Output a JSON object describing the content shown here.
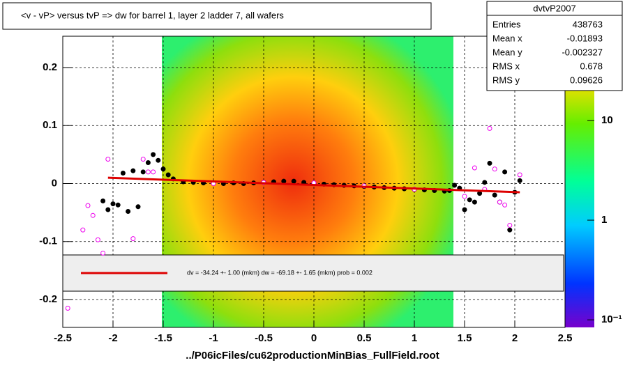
{
  "chart_data": {
    "type": "profile",
    "title": "<v - vP>       versus  tvP =>  dw for barrel 1, layer 2 ladder 7, all wafers",
    "xlabel": "../P06icFiles/cu62productionMinBias_FullField.root",
    "xlim": [
      -2.5,
      2.5
    ],
    "ylim": [
      -0.248,
      0.254
    ],
    "xticks": [
      -2.5,
      -2,
      -1.5,
      -1,
      -0.5,
      0,
      0.5,
      1,
      1.5,
      2,
      2.5
    ],
    "yticks": [
      -0.2,
      -0.1,
      0,
      0.1,
      0.2
    ],
    "grid": true,
    "zlim": [
      0.084,
      70
    ],
    "zscale": "log",
    "zticks": [
      {
        "value": 10,
        "label": "10"
      },
      {
        "value": 1,
        "label": "1"
      },
      {
        "value": 0.1,
        "label": "10⁻¹"
      }
    ],
    "stats": {
      "title": "dvtvP2007",
      "rows": [
        [
          "Entries",
          "438763"
        ],
        [
          "Mean x",
          "-0.01893"
        ],
        [
          "Mean y",
          "-0.002327"
        ],
        [
          "RMS x",
          "0.678"
        ],
        [
          "RMS y",
          "0.09626"
        ]
      ]
    },
    "fit_label": "dv =  -34.24 +-  1.00 (mkm) dw =  -69.18 +-  1.65 (mkm) prob = 0.002",
    "series": [
      {
        "color": "#000000",
        "marker": "filled",
        "x": [
          -2.1,
          -2.05,
          -2.0,
          -1.95,
          -1.9,
          -1.85,
          -1.8,
          -1.75,
          -1.7,
          -1.65,
          -1.6,
          -1.55,
          -1.5,
          -1.45,
          -1.4,
          -1.3,
          -1.2,
          -1.1,
          -1.0,
          -0.9,
          -0.8,
          -0.7,
          -0.6,
          -0.5,
          -0.4,
          -0.3,
          -0.2,
          -0.1,
          0,
          0.1,
          0.2,
          0.3,
          0.4,
          0.5,
          0.6,
          0.7,
          0.8,
          0.9,
          1.0,
          1.1,
          1.2,
          1.3,
          1.35,
          1.4,
          1.45,
          1.5,
          1.55,
          1.6,
          1.65,
          1.7,
          1.75,
          1.8,
          1.85,
          1.9,
          1.95,
          2.0,
          2.05
        ],
        "values": [
          -0.03,
          -0.045,
          -0.035,
          -0.037,
          0.018,
          -0.048,
          0.022,
          -0.04,
          0.02,
          0.036,
          0.05,
          0.04,
          0.025,
          0.015,
          0.008,
          0.003,
          0.002,
          0.001,
          0.001,
          0.0,
          0.001,
          0.0,
          0.001,
          0.002,
          0.003,
          0.004,
          0.004,
          0.002,
          0.0,
          -0.001,
          -0.002,
          -0.003,
          -0.004,
          -0.005,
          -0.006,
          -0.007,
          -0.008,
          -0.009,
          -0.01,
          -0.011,
          -0.012,
          -0.013,
          -0.012,
          -0.003,
          -0.008,
          -0.045,
          -0.028,
          -0.032,
          -0.017,
          0.002,
          0.035,
          -0.02,
          -0.032,
          0.02,
          -0.08,
          -0.015,
          0.005
        ]
      },
      {
        "color": "#ee00ee",
        "marker": "open",
        "x": [
          -2.45,
          -2.3,
          -2.25,
          -2.2,
          -2.15,
          -2.1,
          -2.05,
          -1.8,
          -1.7,
          -1.65,
          -1.6,
          -1.0,
          -0.5,
          0,
          0.5,
          1.0,
          1.5,
          1.6,
          1.7,
          1.75,
          1.8,
          1.85,
          1.9,
          1.95,
          2.05
        ],
        "values": [
          -0.215,
          -0.08,
          -0.038,
          -0.055,
          -0.097,
          -0.12,
          0.042,
          -0.095,
          0.042,
          0.02,
          0.02,
          0.0,
          0.002,
          0.001,
          -0.004,
          -0.01,
          -0.022,
          0.027,
          -0.01,
          0.095,
          0.025,
          -0.032,
          -0.037,
          -0.072,
          0.015
        ]
      },
      {
        "color": "#dd0000",
        "marker": "line",
        "x": [
          -2.05,
          2.05
        ],
        "values": [
          0.01,
          -0.015
        ]
      }
    ]
  }
}
